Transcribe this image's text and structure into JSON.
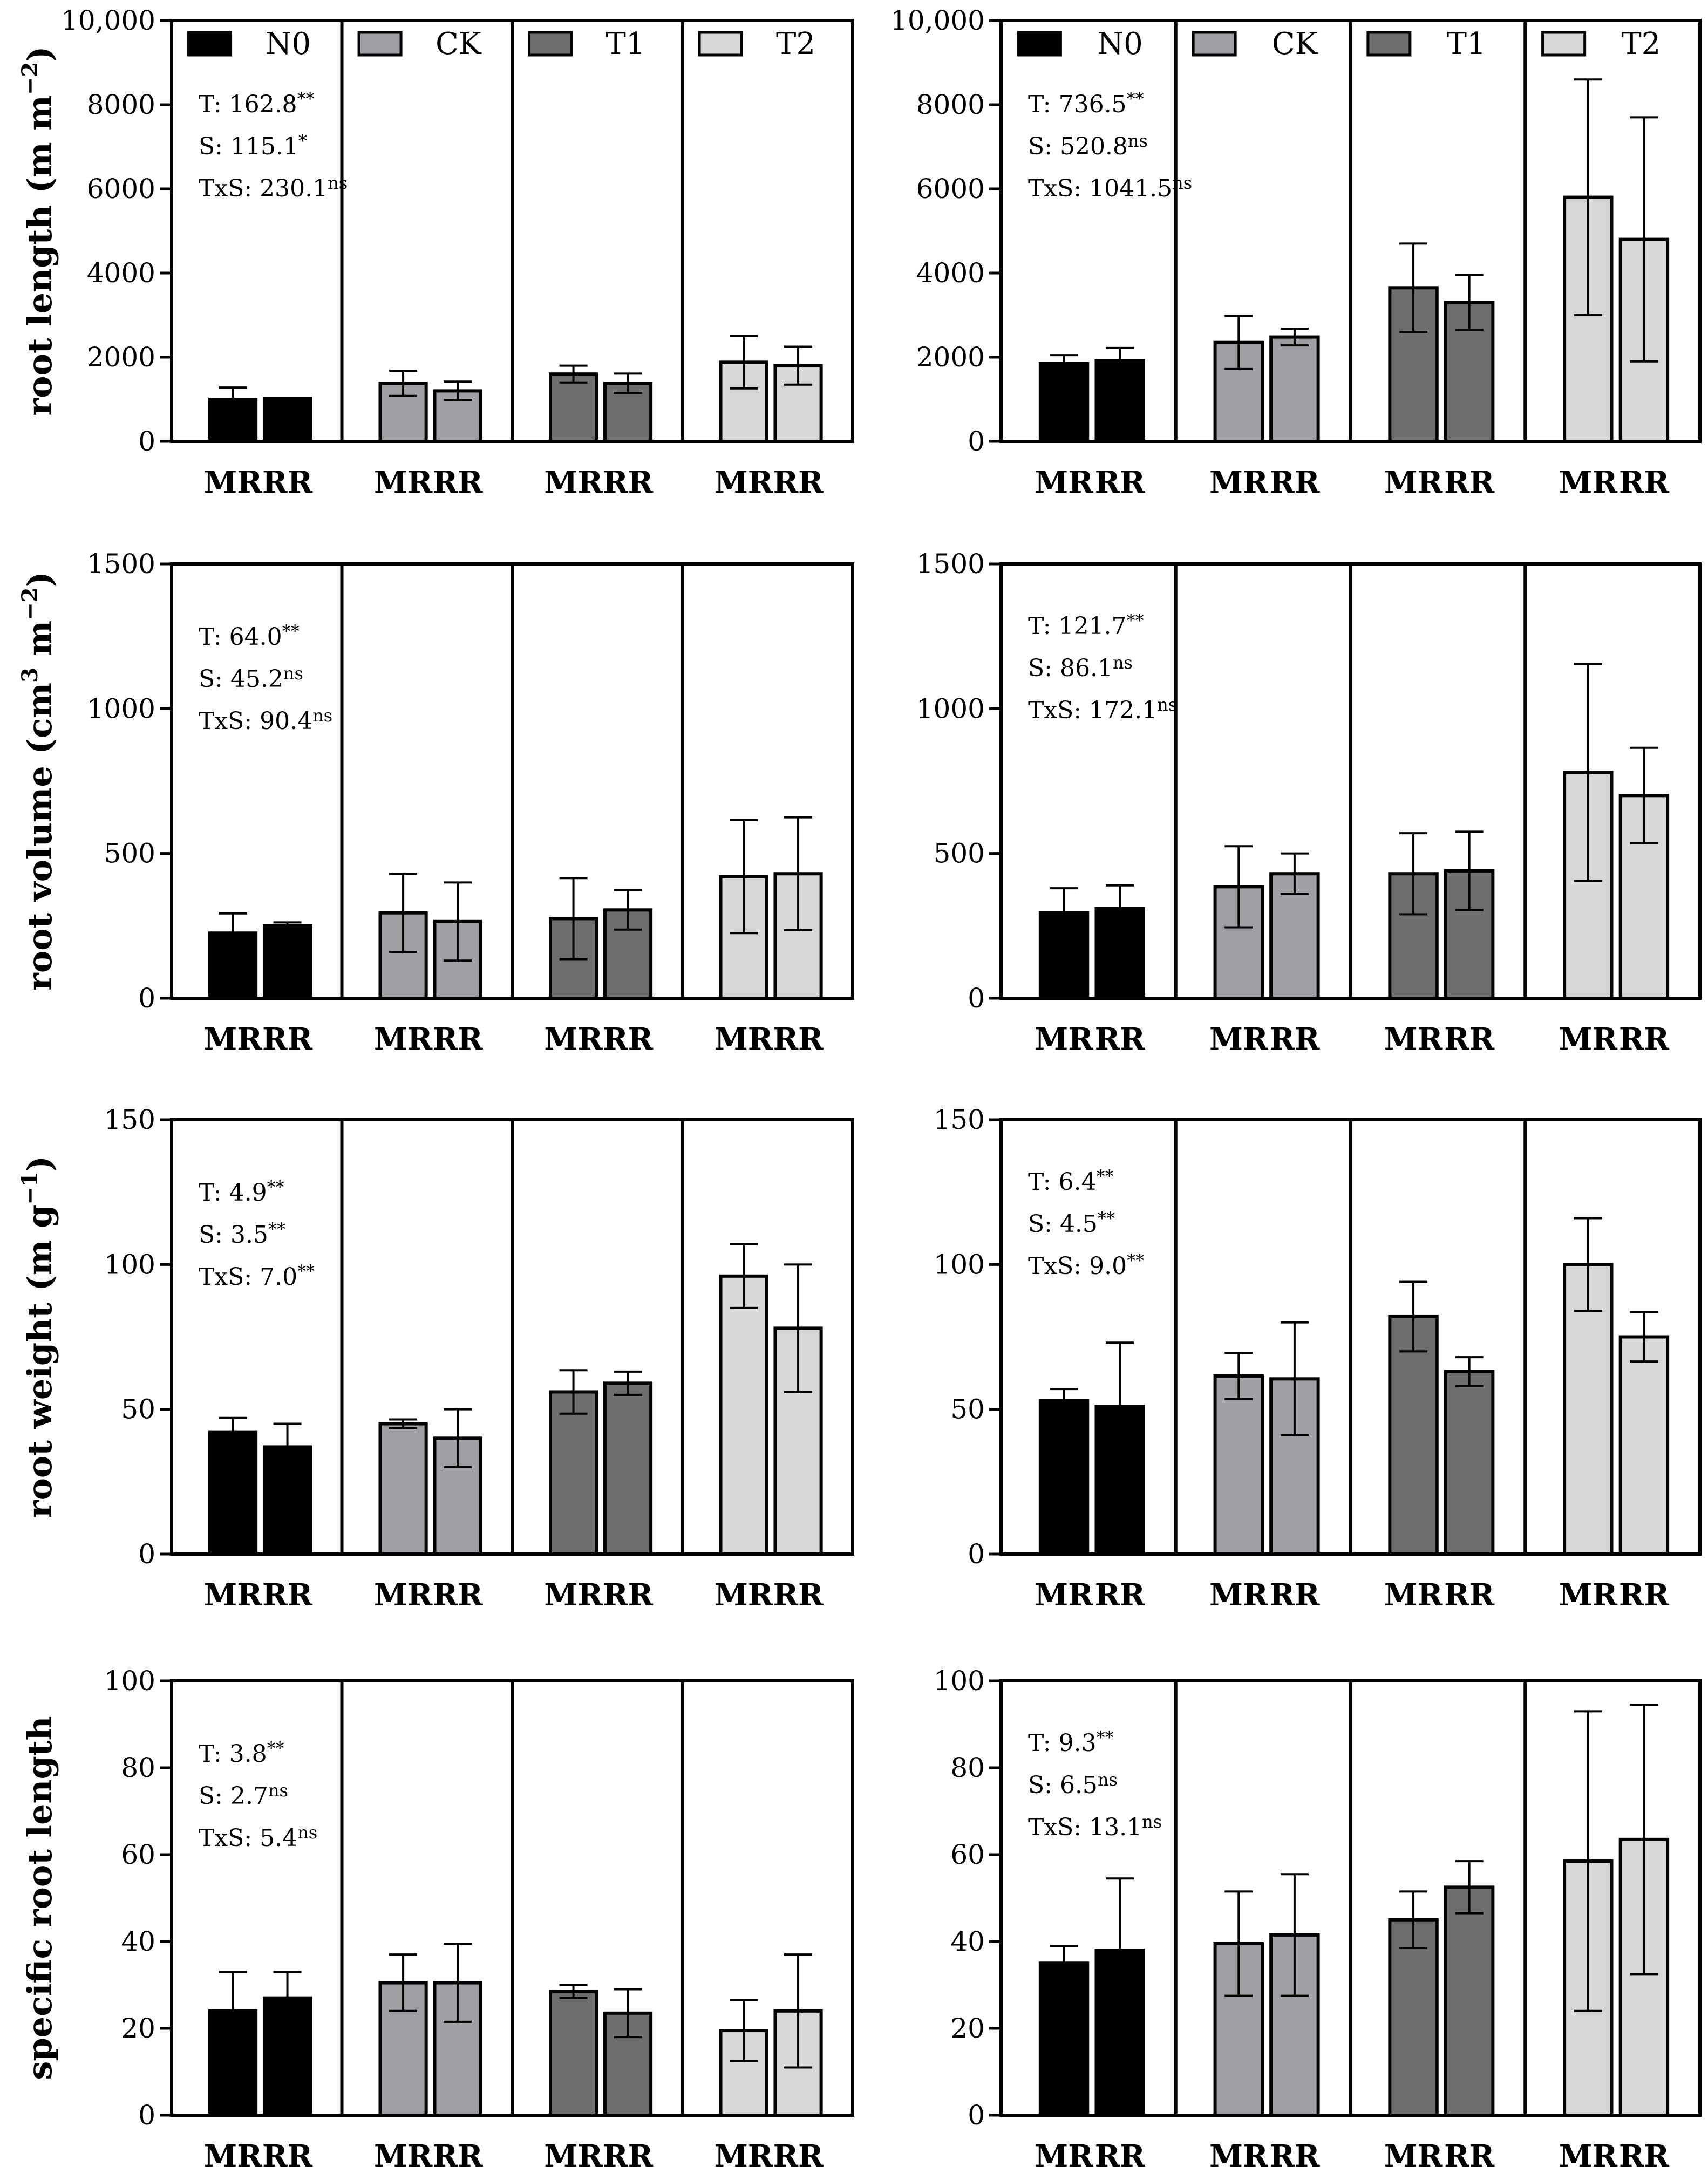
{
  "colors": {
    "N0": "#000000",
    "CK": "#a0a0a4",
    "T1": "#6e6e70",
    "T2": "#d7d7d9",
    "axis": "#000000"
  },
  "legend": [
    {
      "name": "N0",
      "color": "#000000"
    },
    {
      "name": "CK",
      "color": "#a0a0a4"
    },
    {
      "name": "T1",
      "color": "#6e6e70"
    },
    {
      "name": "T2",
      "color": "#d7d7d9"
    }
  ],
  "chart_data": [
    {
      "id": "root-length-left",
      "type": "bar",
      "ylabel": "root length (m m",
      "ylabel_sup": "−2",
      "ylabel_tail": ")",
      "ylim": [
        0,
        10000
      ],
      "yticks": [
        "0",
        "2000",
        "4000",
        "6000",
        "8000",
        "10,000"
      ],
      "groups": [
        "N0",
        "CK",
        "T1",
        "T2"
      ],
      "categories": [
        "MR",
        "RR"
      ],
      "legend": true,
      "stats": [
        {
          "label": "T: 162.8",
          "sup": "**"
        },
        {
          "label": "S: 115.1",
          "sup": "*"
        },
        {
          "label": "TxS: 230.1",
          "sup": "ns"
        }
      ],
      "values": [
        [
          1000,
          1020
        ],
        [
          1380,
          1200
        ],
        [
          1600,
          1380
        ],
        [
          1880,
          1800
        ]
      ],
      "errors": [
        [
          280,
          0
        ],
        [
          300,
          220
        ],
        [
          200,
          230
        ],
        [
          620,
          450
        ]
      ]
    },
    {
      "id": "root-length-right",
      "type": "bar",
      "ylabel": "",
      "ylim": [
        0,
        10000
      ],
      "yticks": [
        "0",
        "2000",
        "4000",
        "6000",
        "8000",
        "10,000"
      ],
      "groups": [
        "N0",
        "CK",
        "T1",
        "T2"
      ],
      "categories": [
        "MR",
        "RR"
      ],
      "legend": true,
      "stats": [
        {
          "label": "T: 736.5",
          "sup": "**"
        },
        {
          "label": "S: 520.8",
          "sup": "ns"
        },
        {
          "label": "TxS: 1041.5",
          "sup": "ns"
        }
      ],
      "values": [
        [
          1850,
          1920
        ],
        [
          2350,
          2480
        ],
        [
          3650,
          3300
        ],
        [
          5800,
          4800
        ]
      ],
      "errors": [
        [
          200,
          300
        ],
        [
          630,
          200
        ],
        [
          1050,
          650
        ],
        [
          2800,
          2900
        ]
      ]
    },
    {
      "id": "root-volume-left",
      "type": "bar",
      "ylabel": "root volume (cm",
      "ylabel_sup": "3",
      "ylabel_mid": " m",
      "ylabel_sup2": "−2",
      "ylabel_tail": ")",
      "ylim": [
        0,
        1500
      ],
      "yticks": [
        "0",
        "500",
        "1000",
        "1500"
      ],
      "groups": [
        "N0",
        "CK",
        "T1",
        "T2"
      ],
      "categories": [
        "MR",
        "RR"
      ],
      "legend": false,
      "stats": [
        {
          "label": "T: 64.0",
          "sup": "**"
        },
        {
          "label": "S: 45.2",
          "sup": "ns"
        },
        {
          "label": "TxS: 90.4",
          "sup": "ns"
        }
      ],
      "values": [
        [
          225,
          250
        ],
        [
          295,
          265
        ],
        [
          275,
          305
        ],
        [
          420,
          430
        ]
      ],
      "errors": [
        [
          68,
          12
        ],
        [
          135,
          135
        ],
        [
          140,
          68
        ],
        [
          195,
          195
        ]
      ]
    },
    {
      "id": "root-volume-right",
      "type": "bar",
      "ylabel": "",
      "ylim": [
        0,
        1500
      ],
      "yticks": [
        "0",
        "500",
        "1000",
        "1500"
      ],
      "groups": [
        "N0",
        "CK",
        "T1",
        "T2"
      ],
      "categories": [
        "MR",
        "RR"
      ],
      "legend": false,
      "stats": [
        {
          "label": "T: 121.7",
          "sup": "**"
        },
        {
          "label": "S: 86.1",
          "sup": "ns"
        },
        {
          "label": "TxS: 172.1",
          "sup": "ns"
        }
      ],
      "values": [
        [
          295,
          310
        ],
        [
          385,
          430
        ],
        [
          430,
          440
        ],
        [
          780,
          700
        ]
      ],
      "errors": [
        [
          85,
          80
        ],
        [
          140,
          70
        ],
        [
          140,
          135
        ],
        [
          375,
          165
        ]
      ]
    },
    {
      "id": "root-weight-left",
      "type": "bar",
      "ylabel": "root weight (m g",
      "ylabel_sup": "−1",
      "ylabel_tail": ")",
      "ylim": [
        0,
        150
      ],
      "yticks": [
        "0",
        "50",
        "100",
        "150"
      ],
      "groups": [
        "N0",
        "CK",
        "T1",
        "T2"
      ],
      "categories": [
        "MR",
        "RR"
      ],
      "legend": false,
      "stats": [
        {
          "label": "T: 4.9",
          "sup": "**"
        },
        {
          "label": "S: 3.5",
          "sup": "**"
        },
        {
          "label": "TxS: 7.0",
          "sup": "**"
        }
      ],
      "values": [
        [
          42,
          37
        ],
        [
          45,
          40
        ],
        [
          56,
          59
        ],
        [
          96,
          78
        ]
      ],
      "errors": [
        [
          5,
          8
        ],
        [
          1.5,
          10
        ],
        [
          7.5,
          4
        ],
        [
          11,
          22
        ]
      ]
    },
    {
      "id": "root-weight-right",
      "type": "bar",
      "ylabel": "",
      "ylim": [
        0,
        150
      ],
      "yticks": [
        "0",
        "50",
        "100",
        "150"
      ],
      "groups": [
        "N0",
        "CK",
        "T1",
        "T2"
      ],
      "categories": [
        "MR",
        "RR"
      ],
      "legend": false,
      "stats": [
        {
          "label": "T: 6.4",
          "sup": "**"
        },
        {
          "label": "S: 4.5",
          "sup": "**"
        },
        {
          "label": "TxS: 9.0",
          "sup": "**"
        }
      ],
      "values": [
        [
          53,
          51
        ],
        [
          61.5,
          60.5
        ],
        [
          82,
          63
        ],
        [
          100,
          75
        ]
      ],
      "errors": [
        [
          4,
          22
        ],
        [
          8,
          19.5
        ],
        [
          12,
          5
        ],
        [
          16,
          8.5
        ]
      ]
    },
    {
      "id": "specific-root-length-left",
      "type": "bar",
      "ylabel": "specific root length",
      "ylim": [
        0,
        100
      ],
      "yticks": [
        "0",
        "20",
        "40",
        "60",
        "80",
        "100"
      ],
      "groups": [
        "N0",
        "CK",
        "T1",
        "T2"
      ],
      "categories": [
        "MR",
        "RR"
      ],
      "legend": false,
      "stats": [
        {
          "label": "T: 3.8",
          "sup": "**"
        },
        {
          "label": "S: 2.7",
          "sup": "ns"
        },
        {
          "label": "TxS: 5.4",
          "sup": "ns"
        }
      ],
      "values": [
        [
          24,
          27
        ],
        [
          30.5,
          30.5
        ],
        [
          28.5,
          23.5
        ],
        [
          19.5,
          24
        ]
      ],
      "errors": [
        [
          9,
          6
        ],
        [
          6.5,
          9
        ],
        [
          1.5,
          5.5
        ],
        [
          7,
          13
        ]
      ]
    },
    {
      "id": "specific-root-length-right",
      "type": "bar",
      "ylabel": "",
      "ylim": [
        0,
        100
      ],
      "yticks": [
        "0",
        "20",
        "40",
        "60",
        "80",
        "100"
      ],
      "groups": [
        "N0",
        "CK",
        "T1",
        "T2"
      ],
      "categories": [
        "MR",
        "RR"
      ],
      "legend": false,
      "stats": [
        {
          "label": "T: 9.3",
          "sup": "**"
        },
        {
          "label": "S: 6.5",
          "sup": "ns"
        },
        {
          "label": "TxS: 13.1",
          "sup": "ns"
        }
      ],
      "values": [
        [
          35,
          38
        ],
        [
          39.5,
          41.5
        ],
        [
          45,
          52.5
        ],
        [
          58.5,
          63.5
        ]
      ],
      "errors": [
        [
          4,
          16.5
        ],
        [
          12,
          14
        ],
        [
          6.5,
          6
        ],
        [
          34.5,
          31
        ]
      ]
    }
  ]
}
